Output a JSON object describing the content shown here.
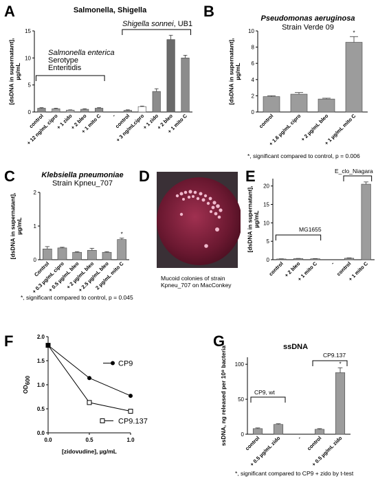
{
  "panels": {
    "A": {
      "letter": "A",
      "title": "Salmonella, Shigella",
      "label_enterica": "Salmonella enterica",
      "label_serotype": "Serotype",
      "label_enteritidis": "Enteritidis",
      "label_sonnei": "Shigella sonnei",
      "label_ub1": ", UB1"
    },
    "B": {
      "letter": "B",
      "title": "Pseudomonas aeruginosa",
      "subtitle": "Strain Verde 09",
      "note": "*, significant compared to control, p = 0.006"
    },
    "C": {
      "letter": "C",
      "title": "Klebsiella pneumoniae",
      "subtitle": "Strain Kpneu_707",
      "note": "*, significant compared to control, p = 0.045"
    },
    "D": {
      "letter": "D",
      "caption_line1": "Mucoid colonies of strain",
      "caption_line2": "Kpneu_707 on MacConkey"
    },
    "E": {
      "letter": "E",
      "label_mg": "MG1655",
      "label_eclo": "E_clo_Niagara"
    },
    "F": {
      "letter": "F"
    },
    "G": {
      "letter": "G",
      "title": "ssDNA",
      "label_wt": "CP9, wt",
      "label_137": "CP9.137",
      "note": "*, significant compared to CP9 + zido by t-test"
    }
  },
  "chart_data": [
    {
      "id": "A",
      "type": "bar",
      "ylabel": "[dsDNA in supernatant], µg/mL",
      "ylim": [
        0,
        15
      ],
      "yticks": [
        0,
        5,
        10,
        15
      ],
      "categories": [
        "control",
        "+ 12 ng/mL cipro",
        "+ 1 zido",
        "+ 2 bleo",
        "+ 1 mito C",
        "",
        "control",
        "+ 3 ng/mLcipro",
        "+ 1 zido",
        "+ 2 bleo",
        "+ 1 mito C"
      ],
      "values": [
        0.7,
        0.6,
        0.35,
        0.5,
        0.7,
        null,
        0.3,
        1.0,
        3.8,
        13.4,
        10.0
      ],
      "errors": [
        0.1,
        0.1,
        0.05,
        0.1,
        0.1,
        null,
        0.1,
        0.1,
        0.5,
        0.8,
        0.5
      ],
      "colors": [
        "#8c8c8c",
        "#a6a6a6",
        "#b8b8b8",
        "#9a9a9a",
        "#8c8c8c",
        null,
        "#8c8c8c",
        "#ffffff",
        "#8c8c8c",
        "#6a6a6a",
        "#8c8c8c"
      ]
    },
    {
      "id": "B",
      "type": "bar",
      "ylabel": "[dsDNA in supernatant], µg/mL",
      "ylim": [
        0,
        10
      ],
      "yticks": [
        0,
        2,
        4,
        6,
        8,
        10
      ],
      "categories": [
        "control",
        "+ 1.6 µg/mL cipro",
        "+ 2 µg/mL bleo",
        "+ 1 µg/mL mito C"
      ],
      "values": [
        1.9,
        2.2,
        1.6,
        8.6
      ],
      "errors": [
        0.1,
        0.2,
        0.1,
        0.7
      ],
      "sig": [
        false,
        false,
        false,
        true
      ]
    },
    {
      "id": "C",
      "type": "bar",
      "ylabel": "[dsDNA in supernatant], µg/mL",
      "ylim": [
        0,
        2
      ],
      "yticks": [
        0,
        1,
        2
      ],
      "categories": [
        "Control",
        "+ 0.3 µg/mL cipro",
        "+ 0.5 µg/mL bleo",
        "+ 2 µg/mL bleo",
        "+ 2.5 µg/mL bleo",
        "2 µg/mL mito C"
      ],
      "values": [
        0.32,
        0.35,
        0.22,
        0.28,
        0.22,
        0.6
      ],
      "errors": [
        0.07,
        0.02,
        0.02,
        0.06,
        0.02,
        0.04
      ],
      "sig": [
        false,
        false,
        false,
        false,
        false,
        true
      ]
    },
    {
      "id": "E",
      "type": "bar",
      "ylabel": "[dsDNA in supernatant], µg/mL",
      "ylim": [
        0,
        22
      ],
      "yticks": [
        0,
        5,
        10,
        15,
        20
      ],
      "categories": [
        "control",
        "+ 2 bleo",
        "+ 1 mito C",
        "",
        "control",
        "+ 1 mito C"
      ],
      "values": [
        0.2,
        0.3,
        0.25,
        null,
        0.4,
        20.5
      ],
      "errors": [
        0.05,
        0.05,
        0.05,
        null,
        0.1,
        0.6
      ]
    },
    {
      "id": "F",
      "type": "line",
      "xlabel": "[zidovudine], µg/mL",
      "ylabel": "OD600",
      "xlim": [
        0,
        1
      ],
      "ylim": [
        0,
        2.0
      ],
      "xticks": [
        "0.0",
        "0.5",
        "1.0"
      ],
      "yticks": [
        "0.0",
        "0.5",
        "1.0",
        "1.5",
        "2.0"
      ],
      "x": [
        0,
        0.5,
        1.0
      ],
      "series": [
        {
          "name": "CP9",
          "values": [
            1.82,
            1.14,
            0.77
          ],
          "marker": "circle"
        },
        {
          "name": "CP9.137",
          "values": [
            1.82,
            0.63,
            0.45
          ],
          "marker": "square"
        }
      ]
    },
    {
      "id": "G",
      "type": "bar",
      "ylabel": "ssDNA, ng released per 10⁸ bacteria",
      "ylim": [
        0,
        110
      ],
      "yticks": [
        0,
        50,
        100
      ],
      "categories": [
        "control",
        "+ 0.5 µg/mL zido",
        "",
        "control",
        "+ 0.5 µg/mL zido"
      ],
      "values": [
        8,
        14,
        null,
        7,
        88
      ],
      "errors": [
        1,
        1,
        null,
        1,
        7
      ],
      "sig": [
        false,
        false,
        false,
        false,
        true
      ]
    }
  ]
}
